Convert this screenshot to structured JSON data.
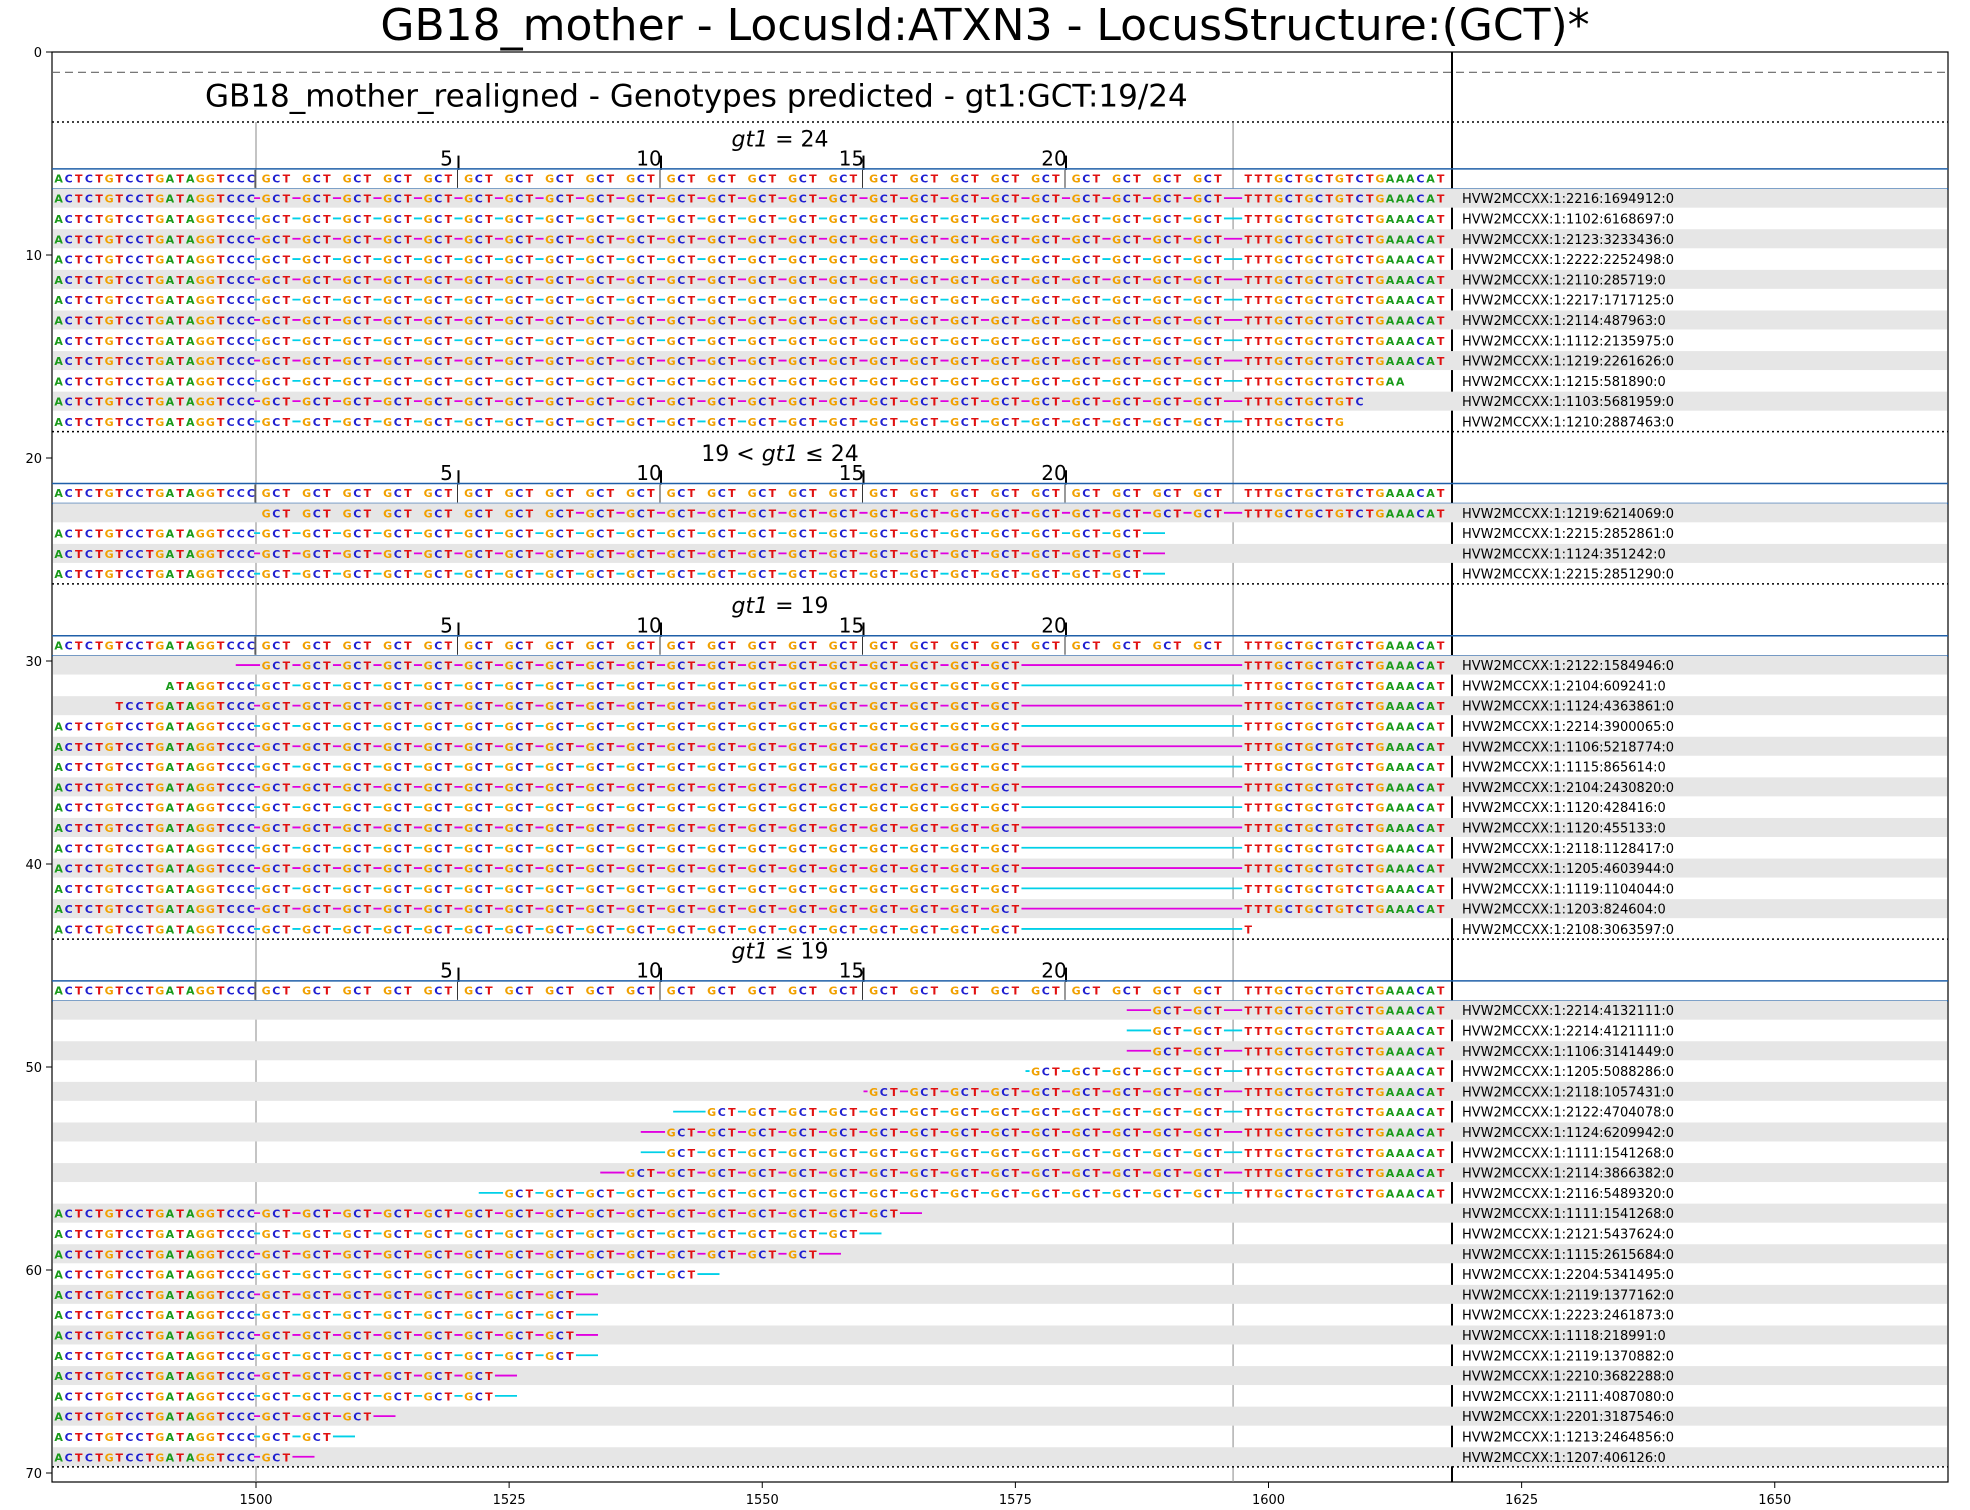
{
  "title": "GB18_mother - LocusId:ATXN3 - LocusStructure:(GCT)*",
  "subtitle": "GB18_mother_realigned - Genotypes predicted - gt1:GCT:19/24",
  "colors": {
    "A": "#1a9a1a",
    "C": "#1f1fd0",
    "G": "#f0a000",
    "T": "#e01010",
    "magenta": "#e000e0",
    "cyan": "#00d0e8",
    "blue": "#1f5fa8",
    "shade": "#e6e6e6"
  },
  "x_axis": {
    "ticks": [
      1500,
      1525,
      1550,
      1575,
      1600,
      1625,
      1650
    ],
    "labels": [
      "1500",
      "1525",
      "1550",
      "1575",
      "1600",
      "1625",
      "1650"
    ]
  },
  "y_axis": {
    "ticks": [
      0,
      10,
      20,
      30,
      40,
      50,
      60,
      70
    ],
    "labels": [
      "0",
      "10",
      "20",
      "30",
      "40",
      "50",
      "60",
      "70"
    ]
  },
  "ref_left": "ACTCTGTCCTGATAGGTCCC",
  "ref_right": "TTTGCTGCTGTCTGAAACAT",
  "repeat_ticks": [
    {
      "n": 5,
      "label": "5"
    },
    {
      "n": 10,
      "label": "10"
    },
    {
      "n": 15,
      "label": "15"
    },
    {
      "n": 20,
      "label": "20"
    }
  ],
  "groups": [
    {
      "title": "gt1 = 24",
      "math": [
        "gt1",
        " = 24"
      ],
      "reads": [
        {
          "name": "HVW2MCCXX:1:2216:1694912:0"
        },
        {
          "name": "HVW2MCCXX:1:1102:6168697:0"
        },
        {
          "name": "HVW2MCCXX:1:2123:3233436:0"
        },
        {
          "name": "HVW2MCCXX:1:2222:2252498:0"
        },
        {
          "name": "HVW2MCCXX:1:2110:285719:0"
        },
        {
          "name": "HVW2MCCXX:1:2217:1717125:0"
        },
        {
          "name": "HVW2MCCXX:1:2114:487963:0"
        },
        {
          "name": "HVW2MCCXX:1:1112:2135975:0"
        },
        {
          "name": "HVW2MCCXX:1:1219:2261626:0"
        },
        {
          "name": "HVW2MCCXX:1:1215:581890:0"
        },
        {
          "name": "HVW2MCCXX:1:1103:5681959:0"
        },
        {
          "name": "HVW2MCCXX:1:1210:2887463:0"
        }
      ]
    },
    {
      "title": "19 < gt1 ≤ 24",
      "math": [
        "19 < ",
        "gt1",
        " ≤ 24"
      ],
      "reads": [
        {
          "name": "HVW2MCCXX:1:1219:6214069:0"
        },
        {
          "name": "HVW2MCCXX:1:2215:2852861:0"
        },
        {
          "name": "HVW2MCCXX:1:1124:351242:0"
        },
        {
          "name": "HVW2MCCXX:1:2215:2851290:0"
        }
      ]
    },
    {
      "title": "gt1 = 19",
      "math": [
        "gt1",
        " = 19"
      ],
      "reads": [
        {
          "name": "HVW2MCCXX:1:2122:1584946:0"
        },
        {
          "name": "HVW2MCCXX:1:2104:609241:0"
        },
        {
          "name": "HVW2MCCXX:1:1124:4363861:0"
        },
        {
          "name": "HVW2MCCXX:1:2214:3900065:0"
        },
        {
          "name": "HVW2MCCXX:1:1106:5218774:0"
        },
        {
          "name": "HVW2MCCXX:1:1115:865614:0"
        },
        {
          "name": "HVW2MCCXX:1:2104:2430820:0"
        },
        {
          "name": "HVW2MCCXX:1:1120:428416:0"
        },
        {
          "name": "HVW2MCCXX:1:1120:455133:0"
        },
        {
          "name": "HVW2MCCXX:1:2118:1128417:0"
        },
        {
          "name": "HVW2MCCXX:1:1205:4603944:0"
        },
        {
          "name": "HVW2MCCXX:1:1119:1104044:0"
        },
        {
          "name": "HVW2MCCXX:1:1203:824604:0"
        },
        {
          "name": "HVW2MCCXX:1:2108:3063597:0"
        }
      ]
    },
    {
      "title": "gt1 ≤ 19",
      "math": [
        "gt1",
        " ≤ 19"
      ],
      "reads": [
        {
          "name": "HVW2MCCXX:1:2214:4132111:0"
        },
        {
          "name": "HVW2MCCXX:1:2214:4121111:0"
        },
        {
          "name": "HVW2MCCXX:1:1106:3141449:0"
        },
        {
          "name": "HVW2MCCXX:1:1205:5088286:0"
        },
        {
          "name": "HVW2MCCXX:1:2118:1057431:0"
        },
        {
          "name": "HVW2MCCXX:1:2122:4704078:0"
        },
        {
          "name": "HVW2MCCXX:1:1124:6209942:0"
        },
        {
          "name": "HVW2MCCXX:1:1111:1541268:0"
        },
        {
          "name": "HVW2MCCXX:1:2114:3866382:0"
        },
        {
          "name": "HVW2MCCXX:1:2116:5489320:0"
        },
        {
          "name": "HVW2MCCXX:1:1111:1541268:0"
        },
        {
          "name": "HVW2MCCXX:1:2121:5437624:0"
        },
        {
          "name": "HVW2MCCXX:1:1115:2615684:0"
        },
        {
          "name": "HVW2MCCXX:1:2204:5341495:0"
        },
        {
          "name": "HVW2MCCXX:1:2119:1377162:0"
        },
        {
          "name": "HVW2MCCXX:1:2223:2461873:0"
        },
        {
          "name": "HVW2MCCXX:1:1118:218991:0"
        },
        {
          "name": "HVW2MCCXX:1:2119:1370882:0"
        },
        {
          "name": "HVW2MCCXX:1:2210:3682288:0"
        },
        {
          "name": "HVW2MCCXX:1:2111:4087080:0"
        },
        {
          "name": "HVW2MCCXX:1:2201:3187546:0"
        },
        {
          "name": "HVW2MCCXX:1:1213:2464856:0"
        },
        {
          "name": "HVW2MCCXX:1:1207:406126:0"
        }
      ]
    }
  ]
}
